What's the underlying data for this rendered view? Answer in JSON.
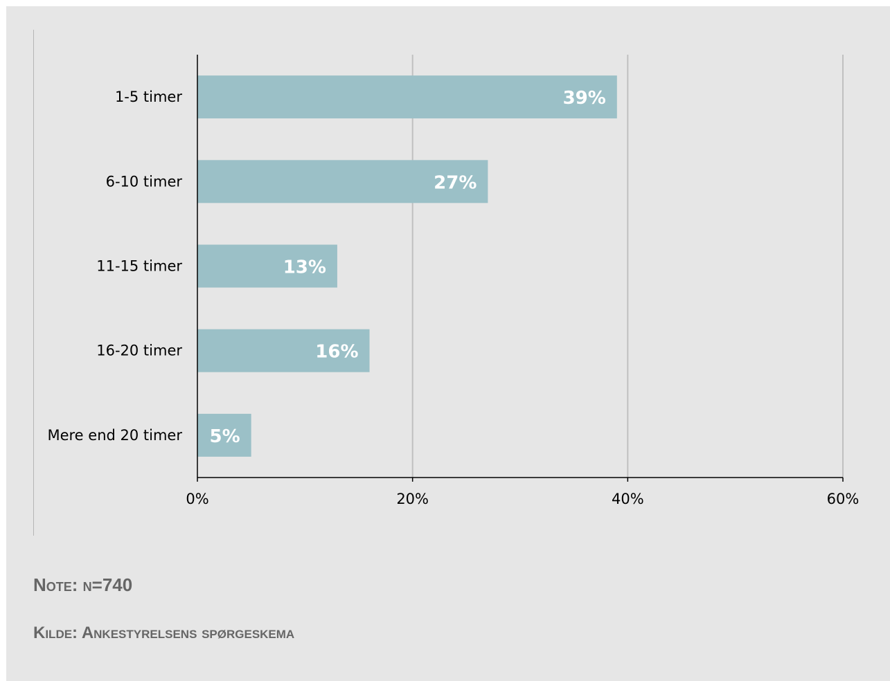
{
  "chart_data": {
    "type": "bar",
    "orientation": "horizontal",
    "categories": [
      "1-5 timer",
      "6-10 timer",
      "11-15 timer",
      "16-20 timer",
      "Mere end 20 timer"
    ],
    "values": [
      39,
      27,
      13,
      16,
      5
    ],
    "data_labels": [
      "39%",
      "27%",
      "13%",
      "16%",
      "5%"
    ],
    "xlim": [
      0,
      60
    ],
    "x_ticks": [
      0,
      20,
      40,
      60
    ],
    "x_tick_labels": [
      "0%",
      "20%",
      "40%",
      "60%"
    ],
    "grid": "vertical",
    "legend": "none",
    "title": "",
    "xlabel": "",
    "ylabel": ""
  },
  "notes": {
    "note": "Note: n=740",
    "source": "Kilde: Ankestyrelsens spørgeskema"
  },
  "colors": {
    "background": "#e6e6e6",
    "bar": "#9bc0c7",
    "grid": "#c0c0c0",
    "axis": "#000000",
    "note_text": "#666666"
  }
}
